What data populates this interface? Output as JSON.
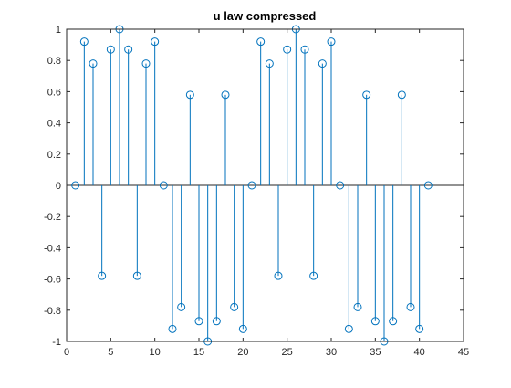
{
  "chart_data": {
    "type": "stem",
    "title": "u law compressed",
    "xlabel": "",
    "ylabel": "",
    "xlim": [
      0,
      45
    ],
    "ylim": [
      -1,
      1
    ],
    "xticks": [
      0,
      5,
      10,
      15,
      20,
      25,
      30,
      35,
      40,
      45
    ],
    "yticks": [
      -1,
      -0.8,
      -0.6,
      -0.4,
      -0.2,
      0,
      0.2,
      0.4,
      0.6,
      0.8,
      1
    ],
    "xtick_labels": [
      "0",
      "5",
      "10",
      "15",
      "20",
      "25",
      "30",
      "35",
      "40",
      "45"
    ],
    "ytick_labels": [
      "-1",
      "-0.8",
      "-0.6",
      "-0.4",
      "-0.2",
      "0",
      "0.2",
      "0.4",
      "0.6",
      "0.8",
      "1"
    ],
    "grid": false,
    "color": "#0072BD",
    "x": [
      1,
      2,
      3,
      4,
      5,
      6,
      7,
      8,
      9,
      10,
      11,
      12,
      13,
      14,
      15,
      16,
      17,
      18,
      19,
      20,
      21,
      22,
      23,
      24,
      25,
      26,
      27,
      28,
      29,
      30,
      31,
      32,
      33,
      34,
      35,
      36,
      37,
      38,
      39,
      40,
      41
    ],
    "y": [
      0,
      0.92,
      0.78,
      -0.58,
      0.87,
      1,
      0.87,
      -0.58,
      0.78,
      0.92,
      0,
      -0.92,
      -0.78,
      0.58,
      -0.87,
      -1,
      -0.87,
      0.58,
      -0.78,
      -0.92,
      0,
      0.92,
      0.78,
      -0.58,
      0.87,
      1,
      0.87,
      -0.58,
      0.78,
      0.92,
      0,
      -0.92,
      -0.78,
      0.58,
      -0.87,
      -1,
      -0.87,
      0.58,
      -0.78,
      -0.92,
      0
    ]
  }
}
